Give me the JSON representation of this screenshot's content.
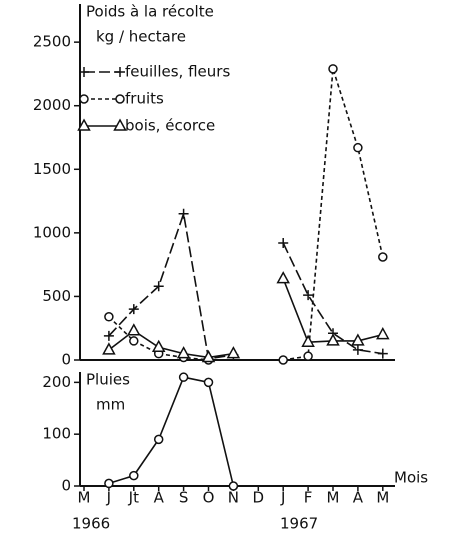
{
  "chart_data": [
    {
      "type": "line",
      "title": "Poids à la récolte",
      "y_label": "kg / hectare",
      "ylim": [
        0,
        2800
      ],
      "yticks": [
        0,
        500,
        1000,
        1500,
        2000,
        2500
      ],
      "series": [
        {
          "name": "feuilles, fleurs",
          "color": "#111111",
          "marker": "plus",
          "dash": "11,4",
          "values": [
            null,
            190,
            400,
            580,
            1150,
            10,
            40,
            null,
            920,
            510,
            210,
            80,
            50
          ]
        },
        {
          "name": "fruits",
          "color": "#111111",
          "marker": "circle",
          "dash": "4,3",
          "values": [
            null,
            340,
            150,
            50,
            20,
            0,
            null,
            null,
            0,
            30,
            2290,
            1670,
            810
          ]
        },
        {
          "name": "bois, écorce",
          "color": "#111111",
          "marker": "triangle",
          "dash": "none",
          "values": [
            null,
            80,
            230,
            100,
            50,
            20,
            50,
            null,
            640,
            140,
            150,
            150,
            200
          ]
        }
      ]
    },
    {
      "type": "line",
      "title": "Pluies",
      "y_label": "mm",
      "x_label": "Mois",
      "categories": [
        "M",
        "J",
        "Jt",
        "A",
        "S",
        "O",
        "N",
        "D",
        "J",
        "F",
        "M",
        "A",
        "M"
      ],
      "year_labels": [
        "1966",
        "1967"
      ],
      "ylim": [
        0,
        220
      ],
      "yticks": [
        0,
        100,
        200
      ],
      "series": [
        {
          "name": "Pluies",
          "color": "#111111",
          "marker": "circle",
          "dash": "none",
          "values": [
            null,
            5,
            20,
            90,
            210,
            200,
            0,
            null,
            null,
            null,
            null,
            null,
            null
          ]
        }
      ]
    }
  ]
}
